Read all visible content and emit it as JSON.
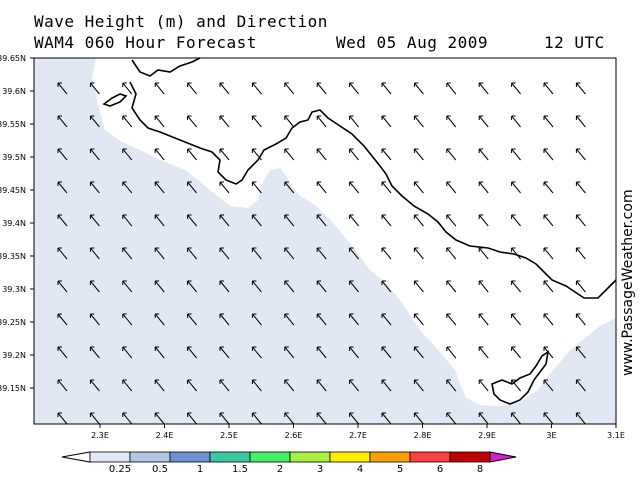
{
  "header": {
    "title_line1": "Wave Height (m) and Direction",
    "title_line2": "WAM4 060 Hour Forecast",
    "date": "Wed 05 Aug 2009",
    "time": "12 UTC"
  },
  "branding": {
    "text": "www.PassageWeather.com"
  },
  "axes": {
    "lat_labels": [
      "39.65N",
      "39.6N",
      "39.55N",
      "39.5N",
      "39.45N",
      "39.4N",
      "39.35N",
      "39.3N",
      "39.25N",
      "39.2N",
      "39.15N"
    ],
    "lon_labels": [
      "2.3E",
      "2.4E",
      "2.5E",
      "2.6E",
      "2.7E",
      "2.8E",
      "2.9E",
      "3E",
      "3.1E"
    ]
  },
  "legend": {
    "labels": [
      "0.25",
      "0.5",
      "1",
      "1.5",
      "2",
      "3",
      "4",
      "5",
      "6",
      "8"
    ],
    "colors": [
      "#ffffff",
      "#e0e8f4",
      "#b4c6e6",
      "#6f90d4",
      "#3ec8a0",
      "#44ee66",
      "#aaf040",
      "#ffee00",
      "#ffa000",
      "#ff4040",
      "#c00000",
      "#d020d0"
    ]
  },
  "map": {
    "sea_color": "#e1e8f3",
    "land_color": "#ffffff",
    "coast_color": "#000000",
    "arrow_direction": "northwest"
  }
}
